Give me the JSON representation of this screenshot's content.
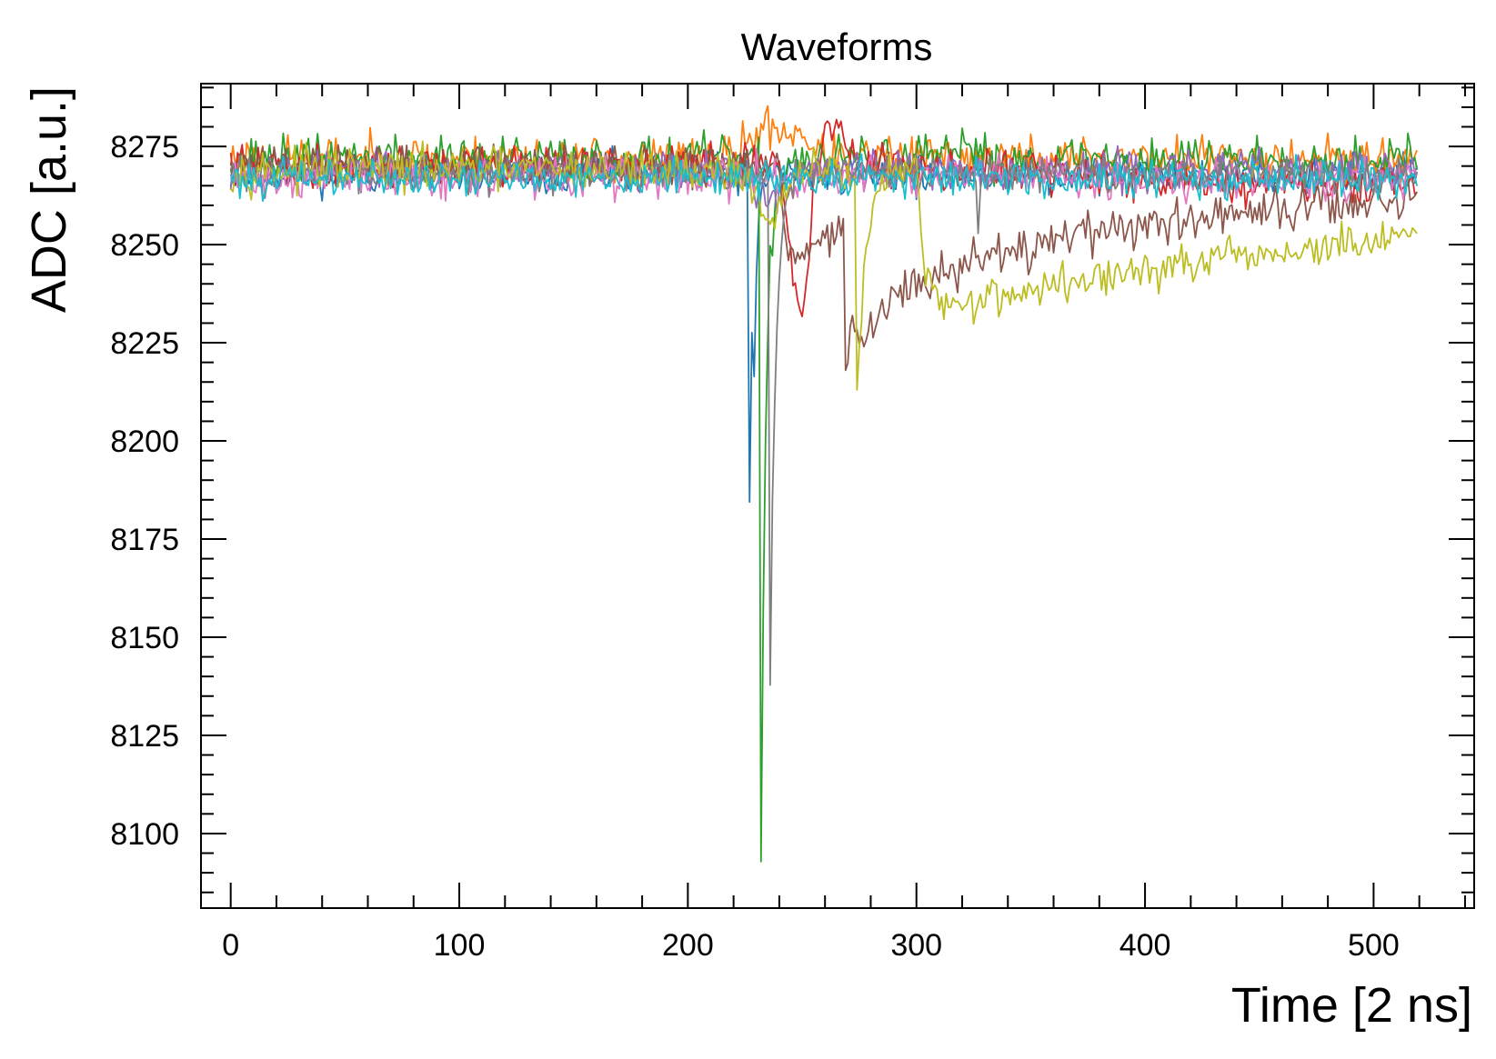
{
  "chart_data": {
    "type": "line",
    "title": "Waveforms",
    "xlabel": "Time [2 ns]",
    "ylabel": "ADC [a.u.]",
    "xlim": [
      -13,
      544
    ],
    "ylim": [
      8081,
      8291
    ],
    "xticks": [
      0,
      100,
      200,
      300,
      400,
      500
    ],
    "yticks": [
      8100,
      8125,
      8150,
      8175,
      8200,
      8225,
      8250,
      8275
    ],
    "grid": false,
    "legend": "none",
    "samples": 520,
    "series": [
      {
        "color": "#1f77b4",
        "baseline": 8268,
        "noise": 2.5,
        "seed": 11,
        "features": [
          {
            "type": "spike",
            "t": 227,
            "depth": 84,
            "tau": 1.5
          },
          {
            "type": "spike",
            "t": 229,
            "depth": 33,
            "tau": 1.2
          }
        ]
      },
      {
        "color": "#ff7f0e",
        "baseline": 8272,
        "noise": 2.8,
        "seed": 23,
        "features": [
          {
            "type": "bump",
            "t": 236,
            "height": 8,
            "width": 8
          },
          {
            "type": "bump",
            "t": 250,
            "height": 5,
            "width": 4
          }
        ]
      },
      {
        "color": "#2ca02c",
        "baseline": 8272,
        "noise": 2.8,
        "seed": 37,
        "features": [
          {
            "type": "spike",
            "t": 232,
            "depth": 182,
            "tau": 2.2
          },
          {
            "type": "bump",
            "t": 325,
            "height": 4,
            "width": 3
          }
        ]
      },
      {
        "color": "#d62728",
        "baseline": 8270,
        "noise": 2.6,
        "seed": 41,
        "features": [
          {
            "type": "dip",
            "t": 249,
            "depth": 38,
            "width": 4
          },
          {
            "type": "bump",
            "t": 262,
            "height": 11,
            "width": 6
          },
          {
            "type": "ramp",
            "t": 320,
            "depth": 7,
            "tau": 120
          }
        ]
      },
      {
        "color": "#9467bd",
        "baseline": 8269,
        "noise": 2.4,
        "seed": 53,
        "features": [
          {
            "type": "dip",
            "t": 235,
            "depth": 8,
            "width": 5
          }
        ]
      },
      {
        "color": "#8c564b",
        "baseline": 8270,
        "noise": 2.6,
        "seed": 61,
        "features": [
          {
            "type": "pulse",
            "t": 240,
            "depth": 30,
            "tau": 40
          },
          {
            "type": "spike",
            "t": 269,
            "depth": 42,
            "tau": 6
          },
          {
            "type": "pulse",
            "t": 272,
            "depth": 26,
            "tau": 220
          }
        ]
      },
      {
        "color": "#e377c2",
        "baseline": 8267,
        "noise": 2.6,
        "seed": 71,
        "features": []
      },
      {
        "color": "#7f7f7f",
        "baseline": 8268,
        "noise": 2.2,
        "seed": 83,
        "features": [
          {
            "type": "spike",
            "t": 236,
            "depth": 127,
            "tau": 2.5
          },
          {
            "type": "spike",
            "t": 327,
            "depth": 12,
            "tau": 1
          }
        ]
      },
      {
        "color": "#bcbd22",
        "baseline": 8269,
        "noise": 2.6,
        "seed": 97,
        "features": [
          {
            "type": "dip",
            "t": 237,
            "depth": 12,
            "width": 6
          },
          {
            "type": "spike",
            "t": 274,
            "depth": 58,
            "tau": 4
          },
          {
            "type": "pulse",
            "t": 300,
            "depth": 36,
            "tau": 300
          }
        ]
      },
      {
        "color": "#17becf",
        "baseline": 8267,
        "noise": 2.3,
        "seed": 101,
        "features": []
      }
    ]
  }
}
